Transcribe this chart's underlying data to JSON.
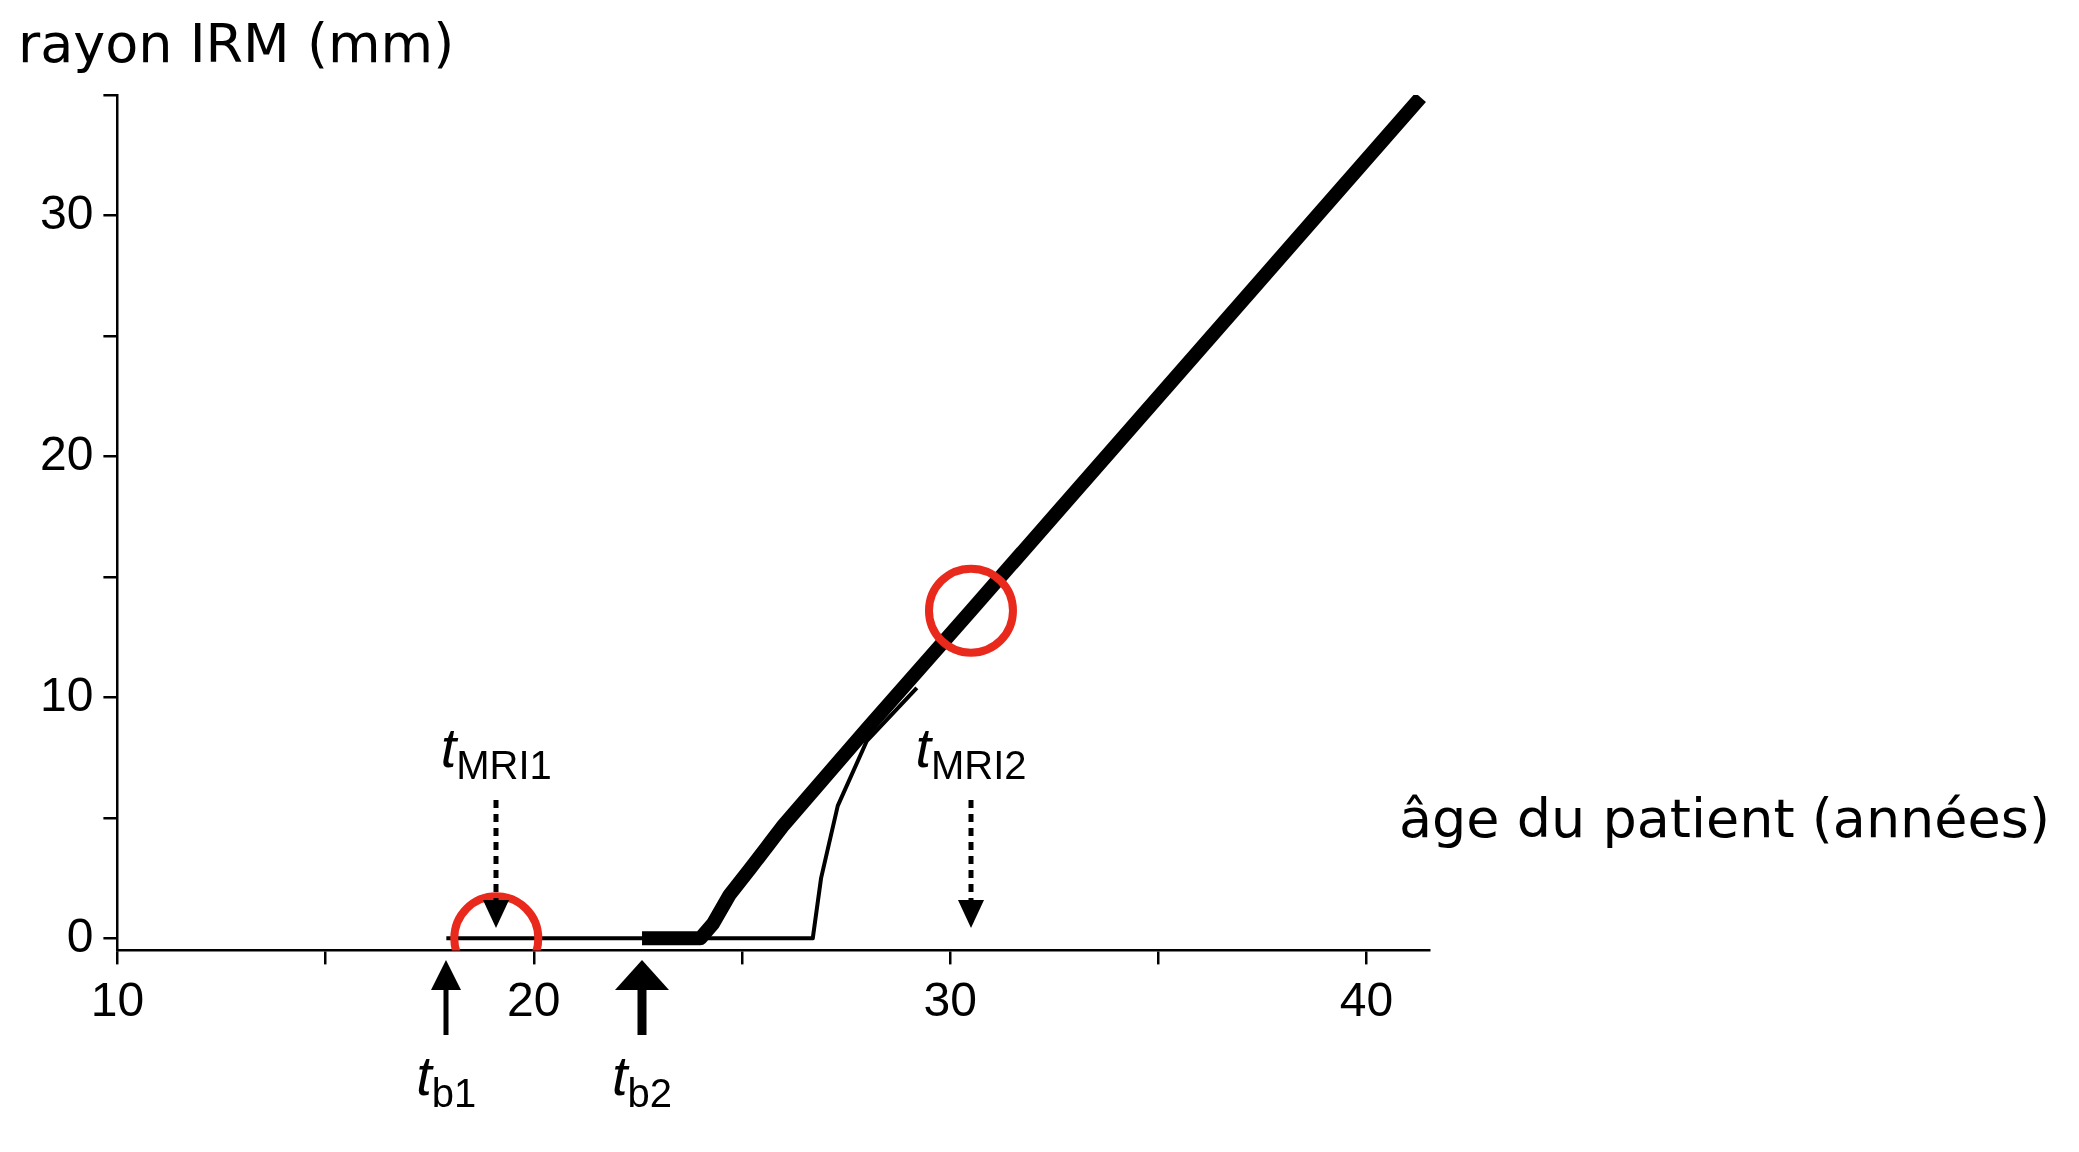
{
  "chart_data": {
    "type": "line",
    "xlabel": "âge du patient (années)",
    "ylabel": "rayon IRM (mm)",
    "xlim": [
      10,
      41.5
    ],
    "ylim": [
      -0.5,
      35
    ],
    "xticks": [
      10,
      {
        "value": 15,
        "label": null
      },
      20,
      {
        "value": 25,
        "label": null
      },
      30,
      {
        "value": 35,
        "label": null
      },
      40
    ],
    "yticks": [
      0,
      {
        "value": 5,
        "label": null
      },
      10,
      {
        "value": 15,
        "label": null
      },
      20,
      {
        "value": 25,
        "label": null
      },
      30,
      {
        "value": 35,
        "label": null
      }
    ],
    "grid": false,
    "legend": false,
    "series": [
      {
        "color": "#000000",
        "x": [
          22.6,
          24.0,
          24.3,
          24.7,
          25.2,
          26,
          28,
          30.5,
          41.3
        ],
        "values": [
          0,
          0,
          0.6,
          1.8,
          2.9,
          4.7,
          8.7,
          13.6,
          34.9
        ]
      },
      {
        "color": "#000000",
        "x": [
          17.9,
          26.7,
          26.9,
          27.3,
          28,
          29.2
        ],
        "values": [
          0,
          0,
          2.5,
          5.5,
          8.2,
          10.4
        ]
      },
      {
        "type": "scatter",
        "marker": "circle",
        "color": "#e8291c",
        "x": [
          19.1,
          30.5
        ],
        "values": [
          0,
          13.6
        ]
      }
    ],
    "annotations": [
      {
        "text": "t$_{b1}$",
        "x": 17.9,
        "y": 0
      },
      {
        "text": "t$_{b2}$",
        "x": 22.6,
        "y": 0
      },
      {
        "text": "t$_{MRI1}$",
        "x": 19.1
      },
      {
        "text": "t$_{MRI2}$",
        "x": 30.5
      }
    ]
  }
}
